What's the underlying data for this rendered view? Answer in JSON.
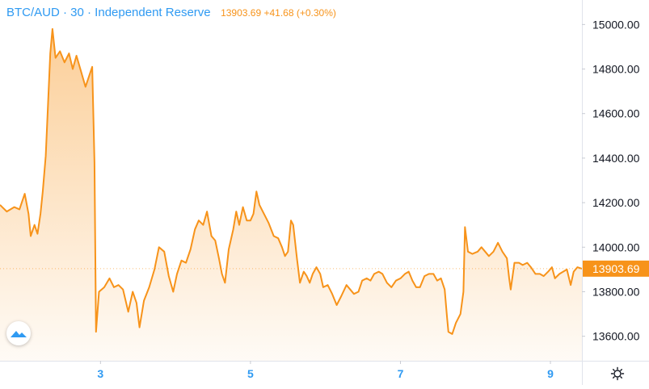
{
  "header": {
    "symbol": "BTC/AUD · 30 · Independent Reserve",
    "last": "13903.69",
    "change": "+41.68",
    "change_pct": "(+0.30%)"
  },
  "price_badge": "13903.69",
  "icons": {
    "logo": "tradingview-logo-icon",
    "settings": "gear-icon"
  },
  "colors": {
    "line": "#f7931a",
    "axis_text": "#131722",
    "x_label": "#2f9af2",
    "badge_bg": "#f7931a"
  },
  "chart_data": {
    "type": "area",
    "title": "BTC/AUD · 30 · Independent Reserve",
    "xlabel": "",
    "ylabel": "",
    "x_ticks": [
      {
        "label": "3",
        "x": 3
      },
      {
        "label": "5",
        "x": 5
      },
      {
        "label": "7",
        "x": 7
      },
      {
        "label": "9",
        "x": 9
      }
    ],
    "y_ticks": [
      "13600.00",
      "13800.00",
      "14000.00",
      "14200.00",
      "14400.00",
      "14600.00",
      "14800.00",
      "15000.00"
    ],
    "xlim": [
      1.66,
      9.42
    ],
    "ylim": [
      13490,
      15110
    ],
    "last_value": 13903.69,
    "series": [
      {
        "values": [
          [
            1.66,
            14190
          ],
          [
            1.75,
            14160
          ],
          [
            1.85,
            14180
          ],
          [
            1.92,
            14170
          ],
          [
            1.99,
            14240
          ],
          [
            2.04,
            14150
          ],
          [
            2.07,
            14050
          ],
          [
            2.12,
            14100
          ],
          [
            2.16,
            14060
          ],
          [
            2.2,
            14150
          ],
          [
            2.23,
            14250
          ],
          [
            2.27,
            14410
          ],
          [
            2.33,
            14870
          ],
          [
            2.36,
            14980
          ],
          [
            2.4,
            14850
          ],
          [
            2.46,
            14880
          ],
          [
            2.52,
            14830
          ],
          [
            2.58,
            14870
          ],
          [
            2.63,
            14800
          ],
          [
            2.68,
            14860
          ],
          [
            2.74,
            14790
          ],
          [
            2.8,
            14720
          ],
          [
            2.86,
            14780
          ],
          [
            2.89,
            14810
          ],
          [
            2.92,
            14380
          ],
          [
            2.94,
            13620
          ],
          [
            2.98,
            13800
          ],
          [
            3.05,
            13820
          ],
          [
            3.12,
            13860
          ],
          [
            3.18,
            13820
          ],
          [
            3.24,
            13830
          ],
          [
            3.3,
            13810
          ],
          [
            3.37,
            13710
          ],
          [
            3.43,
            13800
          ],
          [
            3.48,
            13750
          ],
          [
            3.52,
            13640
          ],
          [
            3.58,
            13760
          ],
          [
            3.65,
            13820
          ],
          [
            3.72,
            13900
          ],
          [
            3.78,
            14000
          ],
          [
            3.85,
            13980
          ],
          [
            3.91,
            13870
          ],
          [
            3.97,
            13800
          ],
          [
            4.02,
            13880
          ],
          [
            4.08,
            13940
          ],
          [
            4.14,
            13930
          ],
          [
            4.2,
            13990
          ],
          [
            4.26,
            14080
          ],
          [
            4.31,
            14120
          ],
          [
            4.37,
            14100
          ],
          [
            4.42,
            14160
          ],
          [
            4.48,
            14050
          ],
          [
            4.53,
            14030
          ],
          [
            4.58,
            13950
          ],
          [
            4.62,
            13880
          ],
          [
            4.66,
            13840
          ],
          [
            4.71,
            13990
          ],
          [
            4.77,
            14080
          ],
          [
            4.81,
            14160
          ],
          [
            4.85,
            14100
          ],
          [
            4.9,
            14180
          ],
          [
            4.95,
            14120
          ],
          [
            5.0,
            14120
          ],
          [
            5.04,
            14150
          ],
          [
            5.08,
            14250
          ],
          [
            5.12,
            14190
          ],
          [
            5.18,
            14150
          ],
          [
            5.24,
            14110
          ],
          [
            5.31,
            14050
          ],
          [
            5.37,
            14040
          ],
          [
            5.42,
            14000
          ],
          [
            5.46,
            13960
          ],
          [
            5.5,
            13980
          ],
          [
            5.54,
            14120
          ],
          [
            5.57,
            14100
          ],
          [
            5.62,
            13950
          ],
          [
            5.66,
            13840
          ],
          [
            5.71,
            13890
          ],
          [
            5.75,
            13870
          ],
          [
            5.79,
            13840
          ],
          [
            5.83,
            13880
          ],
          [
            5.88,
            13910
          ],
          [
            5.93,
            13880
          ],
          [
            5.97,
            13820
          ],
          [
            6.03,
            13830
          ],
          [
            6.09,
            13790
          ],
          [
            6.15,
            13740
          ],
          [
            6.21,
            13780
          ],
          [
            6.28,
            13830
          ],
          [
            6.33,
            13810
          ],
          [
            6.38,
            13790
          ],
          [
            6.44,
            13800
          ],
          [
            6.49,
            13850
          ],
          [
            6.55,
            13860
          ],
          [
            6.6,
            13850
          ],
          [
            6.65,
            13880
          ],
          [
            6.71,
            13890
          ],
          [
            6.76,
            13880
          ],
          [
            6.82,
            13840
          ],
          [
            6.88,
            13820
          ],
          [
            6.94,
            13850
          ],
          [
            7.0,
            13860
          ],
          [
            7.06,
            13880
          ],
          [
            7.11,
            13890
          ],
          [
            7.16,
            13850
          ],
          [
            7.21,
            13820
          ],
          [
            7.26,
            13820
          ],
          [
            7.32,
            13870
          ],
          [
            7.38,
            13880
          ],
          [
            7.44,
            13880
          ],
          [
            7.49,
            13850
          ],
          [
            7.54,
            13860
          ],
          [
            7.59,
            13810
          ],
          [
            7.62,
            13690
          ],
          [
            7.64,
            13620
          ],
          [
            7.69,
            13610
          ],
          [
            7.74,
            13660
          ],
          [
            7.8,
            13700
          ],
          [
            7.84,
            13800
          ],
          [
            7.86,
            14090
          ],
          [
            7.9,
            13980
          ],
          [
            7.96,
            13970
          ],
          [
            8.03,
            13980
          ],
          [
            8.08,
            14000
          ],
          [
            8.13,
            13980
          ],
          [
            8.18,
            13960
          ],
          [
            8.24,
            13980
          ],
          [
            8.3,
            14020
          ],
          [
            8.36,
            13980
          ],
          [
            8.42,
            13950
          ],
          [
            8.45,
            13860
          ],
          [
            8.47,
            13810
          ],
          [
            8.52,
            13930
          ],
          [
            8.58,
            13930
          ],
          [
            8.63,
            13920
          ],
          [
            8.69,
            13930
          ],
          [
            8.74,
            13910
          ],
          [
            8.8,
            13880
          ],
          [
            8.86,
            13880
          ],
          [
            8.91,
            13870
          ],
          [
            8.97,
            13890
          ],
          [
            9.02,
            13910
          ],
          [
            9.06,
            13860
          ],
          [
            9.12,
            13880
          ],
          [
            9.17,
            13890
          ],
          [
            9.22,
            13900
          ],
          [
            9.27,
            13830
          ],
          [
            9.31,
            13890
          ],
          [
            9.36,
            13910
          ],
          [
            9.42,
            13903.69
          ]
        ]
      }
    ]
  }
}
